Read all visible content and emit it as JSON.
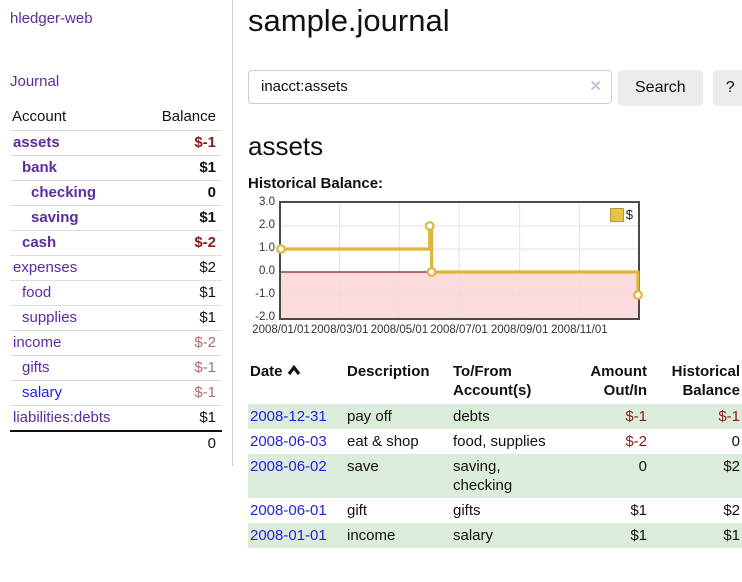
{
  "colors": {
    "link_visited_purple": "#5c2ba0",
    "link_blue": "#2222dd",
    "negative_strong": "#8c1a1a",
    "negative_muted": "#b36b6b",
    "row_green": "#dcecdb",
    "chart_line_gold": "#e0b53e",
    "chart_negative_fill": "#fbdbdb",
    "chart_zero_line": "#8c1a1a",
    "button_gray": "#ececec"
  },
  "sidebar": {
    "app_title": "hledger-web",
    "nav": {
      "journal_label": "Journal"
    },
    "table": {
      "headers": {
        "account": "Account",
        "balance": "Balance"
      },
      "accounts": [
        {
          "name": "assets",
          "indent": 1,
          "bold": true,
          "link_style": "visited",
          "balance": "$-1",
          "balance_style": "neg"
        },
        {
          "name": "bank",
          "indent": 2,
          "bold": true,
          "link_style": "visited",
          "balance": "$1",
          "balance_style": "pos"
        },
        {
          "name": "checking",
          "indent": 3,
          "bold": true,
          "link_style": "visited",
          "balance": "0",
          "balance_style": "pos"
        },
        {
          "name": "saving",
          "indent": 3,
          "bold": true,
          "link_style": "visited",
          "balance": "$1",
          "balance_style": "pos"
        },
        {
          "name": "cash",
          "indent": 2,
          "bold": true,
          "link_style": "visited",
          "balance": "$-2",
          "balance_style": "neg"
        },
        {
          "name": "expenses",
          "indent": 1,
          "bold": false,
          "link_style": "visited",
          "balance": "$2",
          "balance_style": "pos"
        },
        {
          "name": "food",
          "indent": 2,
          "bold": false,
          "link_style": "visited",
          "balance": "$1",
          "balance_style": "pos"
        },
        {
          "name": "supplies",
          "indent": 2,
          "bold": false,
          "link_style": "visited",
          "balance": "$1",
          "balance_style": "pos"
        },
        {
          "name": "income",
          "indent": 1,
          "bold": false,
          "link_style": "visited",
          "balance": "$-2",
          "balance_style": "neg-muted"
        },
        {
          "name": "gifts",
          "indent": 2,
          "bold": false,
          "link_style": "visited",
          "balance": "$-1",
          "balance_style": "neg-muted"
        },
        {
          "name": "salary",
          "indent": 2,
          "bold": false,
          "link_style": "fresh",
          "balance": "$-1",
          "balance_style": "neg-muted"
        },
        {
          "name": "liabilities:debts",
          "indent": 1,
          "bold": false,
          "link_style": "visited",
          "balance": "$1",
          "balance_style": "pos"
        }
      ],
      "total": "0"
    }
  },
  "main": {
    "title": "sample.journal",
    "search": {
      "value": "inacct:assets",
      "clear_icon": "✕",
      "button_label": "Search",
      "help_label": "?"
    },
    "account_heading": "assets"
  },
  "chart_data": {
    "type": "line",
    "title": "Historical Balance:",
    "x_range": [
      "2008-01-01",
      "2008-12-31"
    ],
    "ylim": [
      -2,
      3
    ],
    "y_ticks": [
      "3.0",
      "2.0",
      "1.0",
      "0.0",
      "-1.0",
      "-2.0"
    ],
    "x_ticks": [
      "2008/01/01",
      "2008/03/01",
      "2008/05/01",
      "2008/07/01",
      "2008/09/01",
      "2008/11/01"
    ],
    "series": [
      {
        "name": "$",
        "color": "#e0b53e",
        "points": [
          [
            "2008-01-01",
            1
          ],
          [
            "2008-06-01",
            2
          ],
          [
            "2008-06-03",
            0
          ],
          [
            "2008-12-31",
            -1
          ]
        ]
      }
    ],
    "step": true,
    "grid": true,
    "legend_position": "top-right",
    "negative_fill": "#fbdbdb",
    "zero_line_color": "#8c1a1a"
  },
  "transactions": {
    "headers": [
      {
        "label": "Date",
        "sorted": "asc"
      },
      {
        "label": "Description"
      },
      {
        "label": "To/From Account(s)"
      },
      {
        "label": "Amount Out/In",
        "align": "right"
      },
      {
        "label": "Historical Balance",
        "align": "right"
      }
    ],
    "rows": [
      {
        "date": "2008-12-31",
        "description": "pay off",
        "accounts": "debts",
        "amount": "$-1",
        "amount_style": "neg",
        "balance": "$-1",
        "balance_style": "neg"
      },
      {
        "date": "2008-06-03",
        "description": "eat & shop",
        "accounts": "food, supplies",
        "amount": "$-2",
        "amount_style": "neg",
        "balance": "0",
        "balance_style": "pos"
      },
      {
        "date": "2008-06-02",
        "description": "save",
        "accounts": "saving, checking",
        "amount": "0",
        "amount_style": "pos",
        "balance": "$2",
        "balance_style": "pos"
      },
      {
        "date": "2008-06-01",
        "description": "gift",
        "accounts": "gifts",
        "amount": "$1",
        "amount_style": "pos",
        "balance": "$2",
        "balance_style": "pos"
      },
      {
        "date": "2008-01-01",
        "description": "income",
        "accounts": "salary",
        "amount": "$1",
        "amount_style": "pos",
        "balance": "$1",
        "balance_style": "pos"
      }
    ]
  }
}
